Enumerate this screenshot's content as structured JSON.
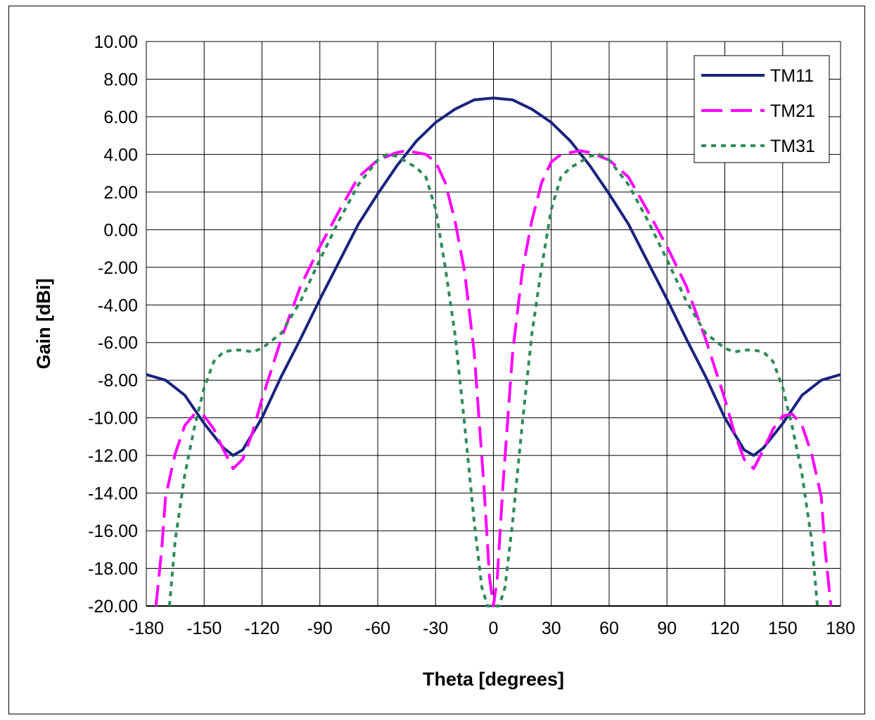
{
  "chart_data": {
    "type": "line",
    "title": "",
    "xlabel": "Theta [degrees]",
    "ylabel": "Gain [dBi]",
    "xlim": [
      -180,
      180
    ],
    "ylim": [
      -20,
      10
    ],
    "x_ticks": [
      "-180",
      "-150",
      "-120",
      "-90",
      "-60",
      "-30",
      "0",
      "30",
      "60",
      "90",
      "120",
      "150",
      "180"
    ],
    "y_ticks": [
      "10.00",
      "8.00",
      "6.00",
      "4.00",
      "2.00",
      "0.00",
      "-2.00",
      "-4.00",
      "-6.00",
      "-8.00",
      "-10.00",
      "-12.00",
      "-14.00",
      "-16.00",
      "-18.00",
      "-20.00"
    ],
    "grid": true,
    "legend_position": "top-right",
    "series": [
      {
        "name": "TM11",
        "color": "#1a237e",
        "style": "solid",
        "x": [
          -180,
          -170,
          -160,
          -150,
          -140,
          -135,
          -130,
          -120,
          -110,
          -100,
          -90,
          -80,
          -70,
          -60,
          -50,
          -40,
          -30,
          -20,
          -10,
          0,
          10,
          20,
          30,
          40,
          50,
          60,
          70,
          80,
          90,
          100,
          110,
          120,
          130,
          135,
          140,
          150,
          160,
          170,
          180
        ],
        "y": [
          -7.7,
          -8.0,
          -8.8,
          -10.3,
          -11.6,
          -12.0,
          -11.7,
          -10.0,
          -7.8,
          -5.8,
          -3.7,
          -1.7,
          0.3,
          1.9,
          3.4,
          4.7,
          5.7,
          6.4,
          6.9,
          7.0,
          6.9,
          6.4,
          5.7,
          4.7,
          3.4,
          1.9,
          0.3,
          -1.7,
          -3.7,
          -5.8,
          -7.8,
          -10.0,
          -11.7,
          -12.0,
          -11.6,
          -10.3,
          -8.8,
          -8.0,
          -7.7
        ]
      },
      {
        "name": "TM21",
        "color": "#ff00ff",
        "style": "dashed",
        "x": [
          -175,
          -172,
          -170,
          -165,
          -160,
          -155,
          -150,
          -145,
          -140,
          -135,
          -130,
          -125,
          -120,
          -110,
          -100,
          -90,
          -80,
          -70,
          -60,
          -50,
          -45,
          -40,
          -35,
          -30,
          -25,
          -20,
          -15,
          -10,
          -5,
          -2,
          0,
          2,
          5,
          10,
          15,
          20,
          25,
          30,
          35,
          40,
          45,
          50,
          60,
          70,
          80,
          90,
          100,
          110,
          120,
          125,
          130,
          135,
          140,
          145,
          150,
          155,
          160,
          165,
          170,
          172,
          175
        ],
        "y": [
          -20.0,
          -17.0,
          -14.2,
          -11.9,
          -10.4,
          -9.8,
          -9.9,
          -10.6,
          -11.7,
          -12.7,
          -12.2,
          -10.8,
          -9.0,
          -5.8,
          -3.0,
          -0.9,
          1.0,
          2.8,
          3.7,
          4.1,
          4.2,
          4.1,
          4.0,
          3.6,
          2.5,
          0.5,
          -2.2,
          -6.5,
          -13.5,
          -18.5,
          -20.0,
          -18.5,
          -13.5,
          -6.5,
          -2.2,
          0.5,
          2.5,
          3.6,
          4.0,
          4.1,
          4.2,
          4.1,
          3.7,
          2.8,
          1.0,
          -0.9,
          -3.0,
          -5.8,
          -9.0,
          -10.8,
          -12.2,
          -12.7,
          -11.7,
          -10.6,
          -9.9,
          -9.8,
          -10.4,
          -11.9,
          -14.2,
          -17.0,
          -20.0
        ]
      },
      {
        "name": "TM31",
        "color": "#2e8b57",
        "style": "dotted",
        "x": [
          -168,
          -165,
          -160,
          -155,
          -150,
          -145,
          -140,
          -135,
          -130,
          -125,
          -120,
          -110,
          -100,
          -90,
          -80,
          -70,
          -60,
          -55,
          -50,
          -45,
          -40,
          -35,
          -30,
          -25,
          -20,
          -15,
          -10,
          -6,
          -3,
          0,
          3,
          6,
          10,
          15,
          20,
          25,
          30,
          35,
          40,
          45,
          50,
          55,
          60,
          70,
          80,
          90,
          100,
          110,
          120,
          125,
          130,
          135,
          140,
          145,
          150,
          155,
          160,
          165,
          168
        ],
        "y": [
          -20.0,
          -16.5,
          -13.0,
          -10.5,
          -8.4,
          -7.0,
          -6.5,
          -6.4,
          -6.4,
          -6.5,
          -6.3,
          -5.5,
          -3.8,
          -1.6,
          0.5,
          2.4,
          3.7,
          4.0,
          3.9,
          3.6,
          3.3,
          2.8,
          1.1,
          -2.0,
          -5.5,
          -10.3,
          -15.5,
          -19.0,
          -20.0,
          -20.0,
          -20.0,
          -19.0,
          -15.5,
          -10.3,
          -5.5,
          -2.0,
          1.1,
          2.8,
          3.3,
          3.6,
          3.9,
          4.0,
          3.7,
          2.4,
          0.5,
          -1.6,
          -3.8,
          -5.5,
          -6.3,
          -6.5,
          -6.4,
          -6.4,
          -6.5,
          -7.0,
          -8.4,
          -10.5,
          -13.0,
          -16.5,
          -20.0
        ]
      }
    ]
  }
}
